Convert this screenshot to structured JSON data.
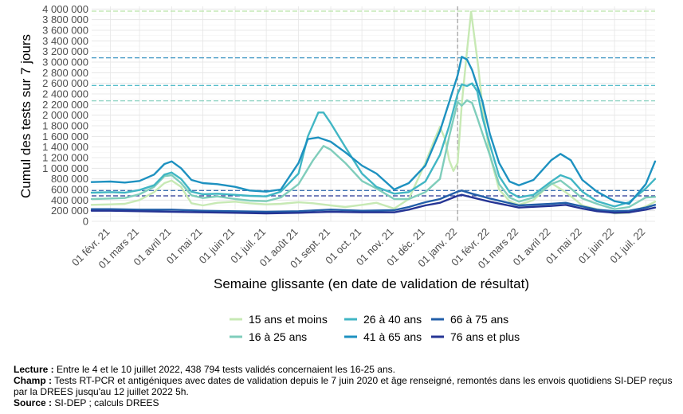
{
  "chart_data": {
    "type": "line",
    "title": "",
    "xlabel": "Semaine glissante (en date de validation de résultat)",
    "ylabel": "Cumul des tests sur 7 jours",
    "ylim": [
      0,
      4050000
    ],
    "y_ticks": [
      "0",
      "200 000",
      "400 000",
      "600 000",
      "800 000",
      "1 000 000",
      "1 200 000",
      "1 400 000",
      "1 600 000",
      "1 800 000",
      "2 000 000",
      "2 200 000",
      "2 400 000",
      "2 600 000",
      "2 800 000",
      "3 000 000",
      "3 200 000",
      "3 400 000",
      "3 600 000",
      "3 800 000",
      "4 000 000"
    ],
    "x_ticks": [
      {
        "date": "2021-02-01",
        "label": "01 févr. 21"
      },
      {
        "date": "2021-03-01",
        "label": "01 mars 21"
      },
      {
        "date": "2021-04-01",
        "label": "01 avril 21"
      },
      {
        "date": "2021-05-01",
        "label": "01 mai 21"
      },
      {
        "date": "2021-06-01",
        "label": "01 juin 21"
      },
      {
        "date": "2021-07-01",
        "label": "01 juil. 21"
      },
      {
        "date": "2021-08-01",
        "label": "01 août 21"
      },
      {
        "date": "2021-09-01",
        "label": "01 sept. 21"
      },
      {
        "date": "2021-10-01",
        "label": "01 oct. 21"
      },
      {
        "date": "2021-11-01",
        "label": "01 nov. 21"
      },
      {
        "date": "2021-12-01",
        "label": "01 déc. 21"
      },
      {
        "date": "2022-01-01",
        "label": "01 janv. 22"
      },
      {
        "date": "2022-02-01",
        "label": "01 févr. 22"
      },
      {
        "date": "2022-03-01",
        "label": "01 mars 22"
      },
      {
        "date": "2022-04-01",
        "label": "01 avril 22"
      },
      {
        "date": "2022-05-01",
        "label": "01 mai 22"
      },
      {
        "date": "2022-06-01",
        "label": "01 juin 22"
      },
      {
        "date": "2022-07-01",
        "label": "01 juil. 22"
      }
    ],
    "x_range": [
      "2021-01-14",
      "2022-07-10"
    ],
    "grid": true,
    "legend_position": "bottom",
    "vertical_reference": "2022-01-01",
    "horizontal_references": [
      {
        "value": 3960000,
        "color": "#b9e3a7"
      },
      {
        "value": 3080000,
        "color": "#2a8cbe"
      },
      {
        "value": 2560000,
        "color": "#41b6c4"
      },
      {
        "value": 2270000,
        "color": "#7fcdbb"
      },
      {
        "value": 580000,
        "color": "#225ea8"
      },
      {
        "value": 480000,
        "color": "#253494"
      }
    ],
    "series": [
      {
        "name": "15 ans et moins",
        "color": "#c7e9b4",
        "x": [
          "2021-01-14",
          "2021-02-01",
          "2021-02-15",
          "2021-03-01",
          "2021-03-15",
          "2021-03-25",
          "2021-04-01",
          "2021-04-10",
          "2021-04-20",
          "2021-05-01",
          "2021-05-15",
          "2021-06-01",
          "2021-06-15",
          "2021-07-01",
          "2021-07-15",
          "2021-08-01",
          "2021-08-15",
          "2021-09-01",
          "2021-09-15",
          "2021-10-01",
          "2021-10-15",
          "2021-11-01",
          "2021-11-15",
          "2021-12-01",
          "2021-12-10",
          "2021-12-15",
          "2021-12-20",
          "2021-12-24",
          "2021-12-28",
          "2022-01-01",
          "2022-01-05",
          "2022-01-10",
          "2022-01-14",
          "2022-01-17",
          "2022-01-21",
          "2022-01-25",
          "2022-02-01",
          "2022-02-10",
          "2022-02-20",
          "2022-03-01",
          "2022-03-15",
          "2022-04-01",
          "2022-04-15",
          "2022-05-01",
          "2022-05-15",
          "2022-06-01",
          "2022-06-15",
          "2022-07-01",
          "2022-07-10"
        ],
        "values": [
          310000,
          320000,
          330000,
          400000,
          550000,
          720000,
          770000,
          650000,
          340000,
          300000,
          350000,
          370000,
          340000,
          320000,
          330000,
          360000,
          340000,
          300000,
          270000,
          310000,
          350000,
          240000,
          420000,
          1100000,
          1550000,
          1780000,
          1550000,
          1150000,
          950000,
          1100000,
          2200000,
          3200000,
          3950000,
          3500000,
          2900000,
          2150000,
          1250000,
          600000,
          380000,
          310000,
          400000,
          720000,
          550000,
          300000,
          230000,
          150000,
          160000,
          280000,
          370000
        ]
      },
      {
        "name": "16 à 25 ans",
        "color": "#7fcdbb",
        "x": [
          "2021-01-14",
          "2021-02-01",
          "2021-02-15",
          "2021-03-01",
          "2021-03-15",
          "2021-03-25",
          "2021-04-01",
          "2021-04-10",
          "2021-04-20",
          "2021-05-01",
          "2021-05-15",
          "2021-06-01",
          "2021-06-15",
          "2021-07-01",
          "2021-07-15",
          "2021-08-01",
          "2021-08-15",
          "2021-08-25",
          "2021-09-01",
          "2021-09-15",
          "2021-10-01",
          "2021-10-15",
          "2021-11-01",
          "2021-11-15",
          "2021-12-01",
          "2021-12-15",
          "2021-12-24",
          "2022-01-01",
          "2022-01-05",
          "2022-01-10",
          "2022-01-15",
          "2022-01-20",
          "2022-01-25",
          "2022-02-01",
          "2022-02-10",
          "2022-02-20",
          "2022-03-01",
          "2022-03-15",
          "2022-04-01",
          "2022-04-10",
          "2022-04-20",
          "2022-05-01",
          "2022-05-15",
          "2022-06-01",
          "2022-06-15",
          "2022-07-01",
          "2022-07-10"
        ],
        "values": [
          420000,
          430000,
          440000,
          510000,
          650000,
          850000,
          870000,
          720000,
          490000,
          440000,
          470000,
          420000,
          390000,
          380000,
          450000,
          700000,
          1150000,
          1420000,
          1350000,
          1100000,
          760000,
          620000,
          420000,
          420000,
          550000,
          800000,
          1600000,
          2250000,
          2180000,
          2280000,
          2230000,
          1950000,
          1650000,
          1250000,
          700000,
          450000,
          370000,
          450000,
          700000,
          770000,
          620000,
          430000,
          330000,
          230000,
          270000,
          450000,
          460000
        ]
      },
      {
        "name": "26 à 40 ans",
        "color": "#41b6c4",
        "x": [
          "2021-01-14",
          "2021-02-01",
          "2021-02-15",
          "2021-03-01",
          "2021-03-15",
          "2021-03-25",
          "2021-04-01",
          "2021-04-10",
          "2021-04-20",
          "2021-05-01",
          "2021-05-15",
          "2021-06-01",
          "2021-06-15",
          "2021-07-01",
          "2021-07-15",
          "2021-08-01",
          "2021-08-10",
          "2021-08-20",
          "2021-08-25",
          "2021-09-01",
          "2021-09-15",
          "2021-10-01",
          "2021-10-15",
          "2021-11-01",
          "2021-11-15",
          "2021-12-01",
          "2021-12-15",
          "2021-12-24",
          "2022-01-01",
          "2022-01-05",
          "2022-01-10",
          "2022-01-15",
          "2022-01-20",
          "2022-01-25",
          "2022-02-01",
          "2022-02-10",
          "2022-02-20",
          "2022-03-01",
          "2022-03-15",
          "2022-04-01",
          "2022-04-10",
          "2022-04-20",
          "2022-05-01",
          "2022-05-15",
          "2022-06-01",
          "2022-06-15",
          "2022-07-01",
          "2022-07-10"
        ],
        "values": [
          540000,
          550000,
          540000,
          590000,
          680000,
          880000,
          920000,
          800000,
          560000,
          510000,
          520000,
          500000,
          480000,
          470000,
          560000,
          900000,
          1600000,
          2050000,
          2050000,
          1850000,
          1400000,
          900000,
          650000,
          520000,
          550000,
          750000,
          1250000,
          1800000,
          2400000,
          2580000,
          2550000,
          2600000,
          2450000,
          1950000,
          1450000,
          850000,
          550000,
          450000,
          500000,
          750000,
          870000,
          800000,
          560000,
          380000,
          280000,
          360000,
          620000,
          800000
        ]
      },
      {
        "name": "41 à 65 ans",
        "color": "#1d91c0",
        "x": [
          "2021-01-14",
          "2021-02-01",
          "2021-02-15",
          "2021-03-01",
          "2021-03-15",
          "2021-03-25",
          "2021-04-01",
          "2021-04-10",
          "2021-04-20",
          "2021-05-01",
          "2021-05-15",
          "2021-06-01",
          "2021-06-15",
          "2021-07-01",
          "2021-07-15",
          "2021-08-01",
          "2021-08-10",
          "2021-08-20",
          "2021-09-01",
          "2021-09-15",
          "2021-10-01",
          "2021-10-15",
          "2021-11-01",
          "2021-11-15",
          "2021-12-01",
          "2021-12-15",
          "2021-12-24",
          "2022-01-01",
          "2022-01-05",
          "2022-01-10",
          "2022-01-15",
          "2022-01-20",
          "2022-01-25",
          "2022-02-01",
          "2022-02-10",
          "2022-02-20",
          "2022-03-01",
          "2022-03-15",
          "2022-04-01",
          "2022-04-10",
          "2022-04-20",
          "2022-05-01",
          "2022-05-15",
          "2022-06-01",
          "2022-06-15",
          "2022-07-01",
          "2022-07-10"
        ],
        "values": [
          740000,
          750000,
          730000,
          760000,
          880000,
          1080000,
          1130000,
          1000000,
          780000,
          720000,
          700000,
          650000,
          580000,
          560000,
          600000,
          1100000,
          1550000,
          1580000,
          1500000,
          1300000,
          1050000,
          900000,
          600000,
          720000,
          1050000,
          1700000,
          2250000,
          2750000,
          3100000,
          3050000,
          2850000,
          2550000,
          2250000,
          1650000,
          1100000,
          750000,
          680000,
          780000,
          1150000,
          1270000,
          1150000,
          780000,
          560000,
          380000,
          330000,
          700000,
          1130000
        ]
      },
      {
        "name": "66 à 75 ans",
        "color": "#225ea8",
        "x": [
          "2021-01-14",
          "2021-02-01",
          "2021-03-01",
          "2021-04-01",
          "2021-05-01",
          "2021-06-01",
          "2021-07-01",
          "2021-08-01",
          "2021-09-01",
          "2021-10-01",
          "2021-11-01",
          "2021-11-15",
          "2021-12-01",
          "2021-12-15",
          "2022-01-01",
          "2022-01-05",
          "2022-01-15",
          "2022-02-01",
          "2022-03-01",
          "2022-04-01",
          "2022-04-15",
          "2022-05-01",
          "2022-05-15",
          "2022-06-01",
          "2022-06-15",
          "2022-07-01",
          "2022-07-10"
        ],
        "values": [
          230000,
          230000,
          220000,
          220000,
          200000,
          190000,
          180000,
          190000,
          220000,
          200000,
          210000,
          270000,
          360000,
          420000,
          560000,
          580000,
          520000,
          430000,
          300000,
          330000,
          350000,
          280000,
          220000,
          190000,
          200000,
          260000,
          310000
        ]
      },
      {
        "name": "76 ans et plus",
        "color": "#253494",
        "x": [
          "2021-01-14",
          "2021-02-01",
          "2021-03-01",
          "2021-04-01",
          "2021-05-01",
          "2021-06-01",
          "2021-07-01",
          "2021-08-01",
          "2021-09-01",
          "2021-10-01",
          "2021-11-01",
          "2021-11-15",
          "2021-12-01",
          "2021-12-15",
          "2022-01-01",
          "2022-01-05",
          "2022-01-15",
          "2022-02-01",
          "2022-03-01",
          "2022-04-01",
          "2022-04-15",
          "2022-05-01",
          "2022-05-15",
          "2022-06-01",
          "2022-06-15",
          "2022-07-01",
          "2022-07-10"
        ],
        "values": [
          200000,
          200000,
          190000,
          180000,
          170000,
          160000,
          150000,
          160000,
          180000,
          170000,
          170000,
          220000,
          300000,
          350000,
          480000,
          500000,
          450000,
          370000,
          260000,
          290000,
          310000,
          240000,
          190000,
          160000,
          170000,
          220000,
          260000
        ]
      }
    ]
  },
  "notes": {
    "lecture_label": "Lecture :",
    "lecture_text": " Entre le 4 et le 10 juillet 2022, 438 794 tests validés concernaient les 16-25 ans.",
    "champ_label": "Champ :",
    "champ_text": " Tests RT-PCR et antigéniques avec dates de validation depuis le 7 juin 2020 et âge renseigné, remontés dans les envois quotidiens SI-DEP reçus par la DREES jusqu'au 12 juillet 2022 5h.",
    "source_label": "Source :",
    "source_text": " SI-DEP ; calculs DREES"
  }
}
